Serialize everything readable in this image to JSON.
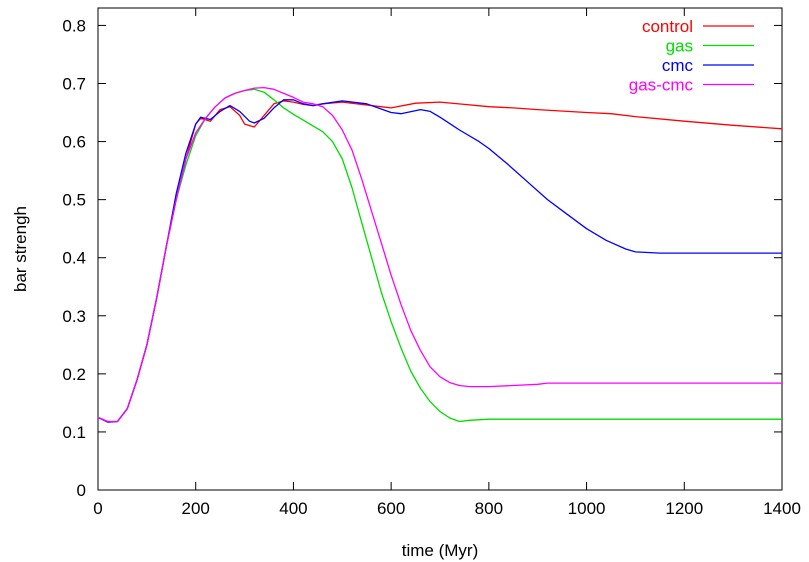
{
  "chart_data": {
    "type": "line",
    "xlabel": "time (Myr)",
    "ylabel": "bar strengh",
    "xlim": [
      0,
      1400
    ],
    "ylim": [
      0,
      0.83
    ],
    "x_ticks": [
      0,
      200,
      400,
      600,
      800,
      1000,
      1200,
      1400
    ],
    "y_ticks": [
      0,
      0.1,
      0.2,
      0.3,
      0.4,
      0.5,
      0.6,
      0.7,
      0.8
    ],
    "x_tick_labels": [
      "0",
      "200",
      "400",
      "600",
      "800",
      "1000",
      "1200",
      "1400"
    ],
    "y_tick_labels": [
      "0",
      "0.1",
      "0.2",
      "0.3",
      "0.4",
      "0.5",
      "0.6",
      "0.7",
      "0.8"
    ],
    "grid": false,
    "legend_position": "top-right",
    "series": [
      {
        "name": "control",
        "color": "#ff0000",
        "points": [
          [
            0,
            0.125
          ],
          [
            20,
            0.117
          ],
          [
            40,
            0.118
          ],
          [
            60,
            0.14
          ],
          [
            80,
            0.19
          ],
          [
            100,
            0.25
          ],
          [
            120,
            0.33
          ],
          [
            140,
            0.42
          ],
          [
            160,
            0.5
          ],
          [
            180,
            0.57
          ],
          [
            200,
            0.63
          ],
          [
            210,
            0.64
          ],
          [
            230,
            0.635
          ],
          [
            250,
            0.655
          ],
          [
            270,
            0.66
          ],
          [
            290,
            0.645
          ],
          [
            300,
            0.63
          ],
          [
            320,
            0.625
          ],
          [
            340,
            0.645
          ],
          [
            360,
            0.665
          ],
          [
            380,
            0.67
          ],
          [
            400,
            0.668
          ],
          [
            420,
            0.664
          ],
          [
            440,
            0.662
          ],
          [
            460,
            0.665
          ],
          [
            500,
            0.668
          ],
          [
            550,
            0.663
          ],
          [
            600,
            0.658
          ],
          [
            650,
            0.666
          ],
          [
            700,
            0.668
          ],
          [
            750,
            0.664
          ],
          [
            800,
            0.66
          ],
          [
            850,
            0.658
          ],
          [
            900,
            0.655
          ],
          [
            1000,
            0.65
          ],
          [
            1050,
            0.648
          ],
          [
            1100,
            0.643
          ],
          [
            1200,
            0.635
          ],
          [
            1300,
            0.628
          ],
          [
            1400,
            0.622
          ]
        ]
      },
      {
        "name": "gas",
        "color": "#00dd00",
        "points": [
          [
            0,
            0.125
          ],
          [
            20,
            0.118
          ],
          [
            40,
            0.118
          ],
          [
            60,
            0.14
          ],
          [
            80,
            0.19
          ],
          [
            100,
            0.25
          ],
          [
            120,
            0.33
          ],
          [
            140,
            0.42
          ],
          [
            160,
            0.5
          ],
          [
            180,
            0.56
          ],
          [
            200,
            0.61
          ],
          [
            220,
            0.64
          ],
          [
            240,
            0.66
          ],
          [
            260,
            0.675
          ],
          [
            280,
            0.683
          ],
          [
            300,
            0.688
          ],
          [
            320,
            0.69
          ],
          [
            340,
            0.685
          ],
          [
            360,
            0.672
          ],
          [
            380,
            0.658
          ],
          [
            400,
            0.647
          ],
          [
            420,
            0.637
          ],
          [
            440,
            0.627
          ],
          [
            460,
            0.617
          ],
          [
            480,
            0.6
          ],
          [
            500,
            0.57
          ],
          [
            520,
            0.52
          ],
          [
            540,
            0.46
          ],
          [
            560,
            0.4
          ],
          [
            580,
            0.34
          ],
          [
            600,
            0.29
          ],
          [
            620,
            0.245
          ],
          [
            640,
            0.205
          ],
          [
            660,
            0.175
          ],
          [
            680,
            0.152
          ],
          [
            700,
            0.135
          ],
          [
            720,
            0.124
          ],
          [
            740,
            0.118
          ],
          [
            760,
            0.12
          ],
          [
            800,
            0.122
          ],
          [
            900,
            0.122
          ],
          [
            1000,
            0.122
          ],
          [
            1200,
            0.122
          ],
          [
            1400,
            0.122
          ]
        ]
      },
      {
        "name": "cmc",
        "color": "#0000ff",
        "points": [
          [
            0,
            0.125
          ],
          [
            20,
            0.117
          ],
          [
            40,
            0.118
          ],
          [
            60,
            0.14
          ],
          [
            80,
            0.19
          ],
          [
            100,
            0.25
          ],
          [
            120,
            0.33
          ],
          [
            140,
            0.42
          ],
          [
            160,
            0.51
          ],
          [
            180,
            0.58
          ],
          [
            200,
            0.63
          ],
          [
            210,
            0.642
          ],
          [
            230,
            0.638
          ],
          [
            250,
            0.652
          ],
          [
            270,
            0.662
          ],
          [
            290,
            0.652
          ],
          [
            310,
            0.635
          ],
          [
            320,
            0.632
          ],
          [
            340,
            0.64
          ],
          [
            360,
            0.658
          ],
          [
            380,
            0.672
          ],
          [
            400,
            0.672
          ],
          [
            420,
            0.665
          ],
          [
            440,
            0.662
          ],
          [
            460,
            0.665
          ],
          [
            500,
            0.67
          ],
          [
            550,
            0.665
          ],
          [
            600,
            0.65
          ],
          [
            620,
            0.648
          ],
          [
            660,
            0.655
          ],
          [
            680,
            0.652
          ],
          [
            700,
            0.642
          ],
          [
            740,
            0.62
          ],
          [
            780,
            0.6
          ],
          [
            800,
            0.588
          ],
          [
            840,
            0.56
          ],
          [
            880,
            0.53
          ],
          [
            920,
            0.5
          ],
          [
            960,
            0.475
          ],
          [
            1000,
            0.45
          ],
          [
            1040,
            0.43
          ],
          [
            1080,
            0.415
          ],
          [
            1100,
            0.41
          ],
          [
            1150,
            0.408
          ],
          [
            1200,
            0.408
          ],
          [
            1300,
            0.408
          ],
          [
            1400,
            0.408
          ]
        ]
      },
      {
        "name": "gas-cmc",
        "color": "#ff00ff",
        "points": [
          [
            0,
            0.125
          ],
          [
            20,
            0.118
          ],
          [
            40,
            0.118
          ],
          [
            60,
            0.14
          ],
          [
            80,
            0.19
          ],
          [
            100,
            0.25
          ],
          [
            120,
            0.33
          ],
          [
            140,
            0.42
          ],
          [
            160,
            0.5
          ],
          [
            180,
            0.57
          ],
          [
            200,
            0.615
          ],
          [
            220,
            0.64
          ],
          [
            240,
            0.66
          ],
          [
            260,
            0.675
          ],
          [
            280,
            0.683
          ],
          [
            300,
            0.688
          ],
          [
            320,
            0.692
          ],
          [
            340,
            0.693
          ],
          [
            360,
            0.69
          ],
          [
            380,
            0.683
          ],
          [
            400,
            0.676
          ],
          [
            420,
            0.668
          ],
          [
            440,
            0.665
          ],
          [
            460,
            0.66
          ],
          [
            480,
            0.645
          ],
          [
            500,
            0.62
          ],
          [
            520,
            0.585
          ],
          [
            540,
            0.535
          ],
          [
            560,
            0.48
          ],
          [
            580,
            0.425
          ],
          [
            600,
            0.37
          ],
          [
            620,
            0.32
          ],
          [
            640,
            0.275
          ],
          [
            660,
            0.24
          ],
          [
            680,
            0.212
          ],
          [
            700,
            0.195
          ],
          [
            720,
            0.185
          ],
          [
            740,
            0.18
          ],
          [
            760,
            0.178
          ],
          [
            800,
            0.178
          ],
          [
            850,
            0.18
          ],
          [
            900,
            0.182
          ],
          [
            920,
            0.184
          ],
          [
            1000,
            0.184
          ],
          [
            1200,
            0.184
          ],
          [
            1400,
            0.184
          ]
        ]
      }
    ]
  }
}
